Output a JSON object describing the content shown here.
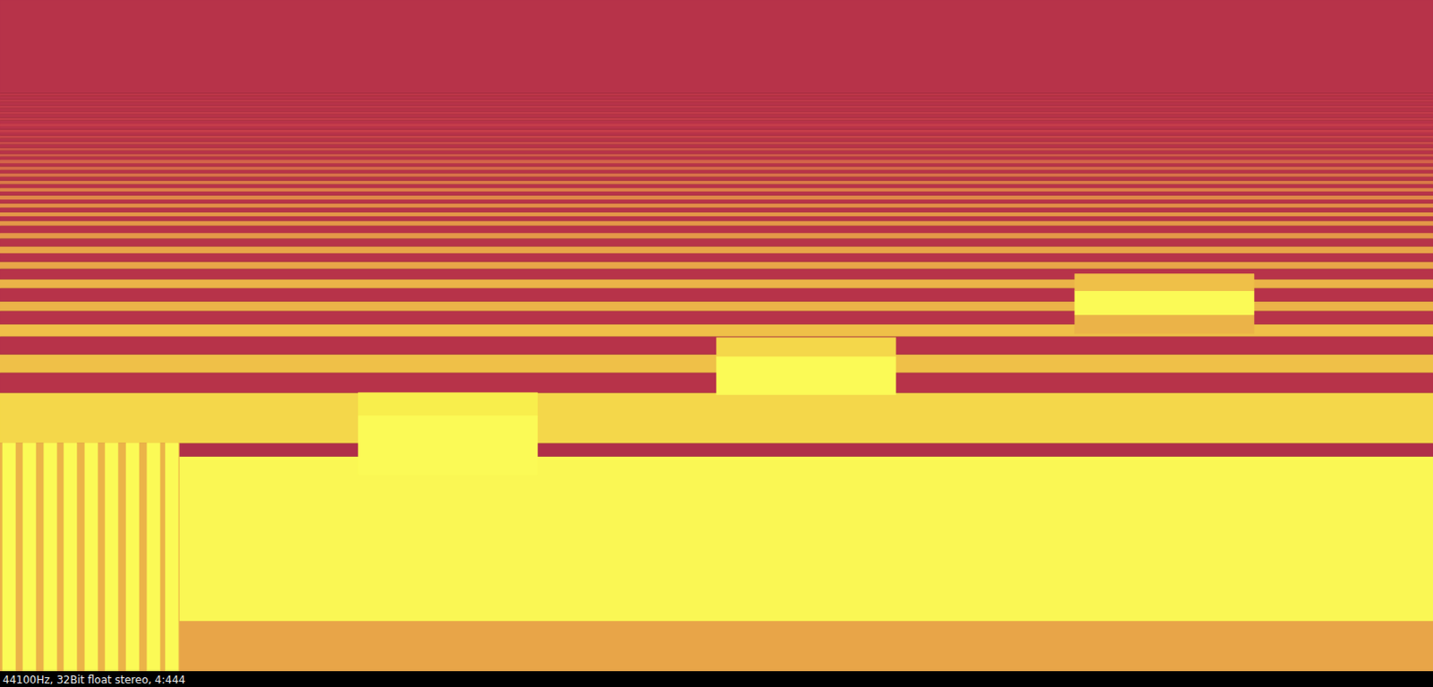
{
  "chart_data": {
    "type": "heatmap",
    "annotation": "44100Hz, 32Bit float stereo, 4:444",
    "xlim": [
      0,
      4.444
    ],
    "ylim": [
      0,
      100
    ],
    "tick_labels": false,
    "grid": false,
    "value_range": [
      0,
      1
    ],
    "bands": [
      [
        0,
        7.5,
        0.5
      ],
      [
        7.5,
        32.0,
        0.95
      ],
      [
        32.0,
        34.0,
        0.05
      ],
      [
        34.0,
        41.5,
        0.7
      ],
      [
        41.5,
        44.5,
        0.1
      ],
      [
        44.5,
        47.2,
        0.6
      ],
      [
        47.2,
        49.9,
        0.1
      ],
      [
        49.9,
        51.7,
        0.6
      ],
      [
        51.7,
        53.7,
        0.1
      ],
      [
        53.7,
        55.1,
        0.55
      ],
      [
        55.1,
        57.1,
        0.1
      ],
      [
        57.1,
        58.4,
        0.55
      ],
      [
        58.4,
        60.0,
        0.1
      ],
      [
        60.0,
        61.0,
        0.5
      ],
      [
        61.0,
        62.3,
        0.1
      ],
      [
        62.3,
        63.3,
        0.5
      ],
      [
        63.3,
        64.5,
        0.1
      ],
      [
        64.5,
        65.3,
        0.45
      ],
      [
        65.3,
        66.4,
        0.1
      ],
      [
        66.4,
        67.1,
        0.45
      ],
      [
        67.1,
        67.8,
        0.1
      ],
      [
        67.8,
        68.4,
        0.45
      ],
      [
        68.4,
        69.1,
        0.1
      ],
      [
        69.1,
        69.7,
        0.42
      ],
      [
        69.7,
        70.3,
        0.1
      ],
      [
        70.3,
        70.9,
        0.4
      ],
      [
        70.9,
        71.5,
        0.1
      ],
      [
        71.5,
        72.0,
        0.38
      ],
      [
        72.0,
        72.6,
        0.1
      ],
      [
        72.6,
        73.1,
        0.36
      ],
      [
        73.1,
        73.7,
        0.1
      ],
      [
        73.7,
        74.2,
        0.34
      ],
      [
        74.2,
        74.7,
        0.1
      ],
      [
        74.7,
        75.2,
        0.32
      ],
      [
        75.2,
        75.7,
        0.1
      ],
      [
        75.7,
        76.2,
        0.3
      ],
      [
        76.2,
        76.7,
        0.1
      ],
      [
        76.7,
        77.1,
        0.28
      ],
      [
        77.1,
        77.6,
        0.1
      ],
      [
        77.6,
        78.0,
        0.26
      ],
      [
        78.0,
        78.5,
        0.1
      ],
      [
        78.5,
        78.9,
        0.24
      ],
      [
        78.9,
        79.4,
        0.1
      ],
      [
        79.4,
        79.8,
        0.22
      ],
      [
        79.8,
        80.3,
        0.1
      ],
      [
        80.3,
        80.7,
        0.2
      ],
      [
        80.7,
        81.2,
        0.1
      ],
      [
        81.2,
        81.6,
        0.19
      ],
      [
        81.6,
        82.1,
        0.1
      ],
      [
        82.1,
        82.5,
        0.18
      ],
      [
        82.5,
        83.0,
        0.1
      ],
      [
        83.0,
        83.4,
        0.17
      ],
      [
        83.4,
        83.9,
        0.1
      ],
      [
        83.9,
        84.3,
        0.16
      ],
      [
        84.3,
        84.8,
        0.1
      ],
      [
        84.8,
        85.2,
        0.15
      ],
      [
        85.2,
        85.7,
        0.1
      ],
      [
        85.7,
        86.1,
        0.14
      ],
      [
        86.1,
        100,
        0.1
      ]
    ],
    "cells": [
      [
        0,
        0.556,
        0,
        34.0,
        0.55
      ],
      [
        0.008,
        0.048,
        0,
        34.0,
        1.0
      ],
      [
        0.071,
        0.111,
        0,
        34.0,
        1.0
      ],
      [
        0.136,
        0.176,
        0,
        34.0,
        1.0
      ],
      [
        0.198,
        0.238,
        0,
        34.0,
        1.0
      ],
      [
        0.263,
        0.303,
        0,
        34.0,
        1.0
      ],
      [
        0.326,
        0.366,
        0,
        34.0,
        1.0
      ],
      [
        0.391,
        0.431,
        0,
        34.0,
        1.0
      ],
      [
        0.456,
        0.496,
        0,
        34.0,
        1.0
      ],
      [
        0.513,
        0.553,
        0,
        34.0,
        1.0
      ],
      [
        1.111,
        1.667,
        29.3,
        38.1,
        1.0
      ],
      [
        1.111,
        1.667,
        38.1,
        41.5,
        0.8
      ],
      [
        2.222,
        2.778,
        41.2,
        46.9,
        1.0
      ],
      [
        2.222,
        2.778,
        46.9,
        49.7,
        0.7
      ],
      [
        3.333,
        3.889,
        50.3,
        53.1,
        0.55
      ],
      [
        3.333,
        3.889,
        53.1,
        56.7,
        1.0
      ],
      [
        3.333,
        3.889,
        56.7,
        59.2,
        0.6
      ]
    ]
  }
}
